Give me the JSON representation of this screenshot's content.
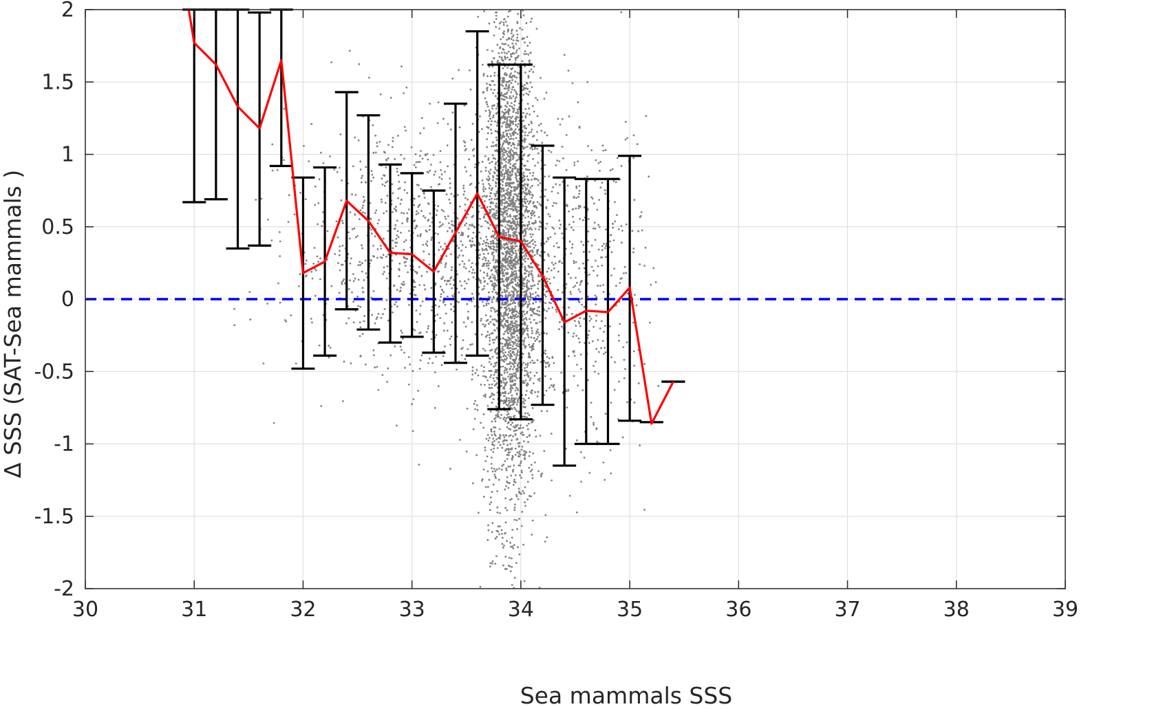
{
  "chart_data": {
    "type": "scatter",
    "title": "",
    "xlabel": "Sea mammals  SSS",
    "ylabel": "Δ SSS (SAT-Sea mammals )",
    "xlim": [
      30,
      39
    ],
    "ylim": [
      -2,
      2
    ],
    "xticks": [
      30,
      31,
      32,
      33,
      34,
      35,
      36,
      37,
      38,
      39
    ],
    "yticks": [
      -2,
      -1.5,
      -1,
      -0.5,
      0,
      0.5,
      1,
      1.5,
      2
    ],
    "xtick_labels": [
      "30",
      "31",
      "32",
      "33",
      "34",
      "35",
      "36",
      "37",
      "38",
      "39"
    ],
    "ytick_labels": [
      "-2",
      "-1.5",
      "-1",
      "-0.5",
      "0",
      "0.5",
      "1",
      "1.5",
      "2"
    ],
    "grid": true,
    "colors": {
      "scatter": "#808080",
      "mean_line": "#ff0000",
      "error_bars": "#000000",
      "zero_line": "#0000ff",
      "grid": "#e0e0e0",
      "axes": "#262626"
    },
    "scatter": {
      "name": "",
      "description_note": "dense cloud of individual points",
      "clusters": [
        {
          "x_center": 33.9,
          "x_spread": 0.12,
          "y_center": 0.3,
          "y_spread": 0.9,
          "count": 3200
        },
        {
          "x_center": 33.3,
          "x_spread": 0.7,
          "y_center": 0.35,
          "y_spread": 0.45,
          "count": 1300
        },
        {
          "x_center": 34.5,
          "x_spread": 0.35,
          "y_center": 0.0,
          "y_spread": 0.6,
          "count": 450
        }
      ]
    },
    "binned_mean": {
      "x": [
        30.95,
        31.0,
        31.2,
        31.4,
        31.6,
        31.8,
        32.0,
        32.2,
        32.4,
        32.6,
        32.8,
        33.0,
        33.2,
        33.4,
        33.6,
        33.8,
        34.0,
        34.2,
        34.4,
        34.6,
        34.8,
        35.0,
        35.2,
        35.4
      ],
      "y": [
        2.0,
        1.77,
        1.62,
        1.33,
        1.18,
        1.65,
        0.18,
        0.26,
        0.68,
        0.54,
        0.32,
        0.31,
        0.19,
        0.46,
        0.73,
        0.43,
        0.4,
        0.16,
        -0.16,
        -0.08,
        -0.09,
        0.08,
        -0.86,
        -0.57
      ]
    },
    "error_bars": [
      {
        "x": 31.0,
        "low": 0.67,
        "high": 2.0
      },
      {
        "x": 31.2,
        "low": 0.69,
        "high": 2.0
      },
      {
        "x": 31.4,
        "low": 0.35,
        "high": 2.0
      },
      {
        "x": 31.6,
        "low": 0.37,
        "high": 1.98
      },
      {
        "x": 31.8,
        "low": 0.92,
        "high": 2.0
      },
      {
        "x": 32.0,
        "low": -0.48,
        "high": 0.84
      },
      {
        "x": 32.2,
        "low": -0.39,
        "high": 0.91
      },
      {
        "x": 32.4,
        "low": -0.07,
        "high": 1.43
      },
      {
        "x": 32.6,
        "low": -0.21,
        "high": 1.27
      },
      {
        "x": 32.8,
        "low": -0.3,
        "high": 0.93
      },
      {
        "x": 33.0,
        "low": -0.26,
        "high": 0.87
      },
      {
        "x": 33.2,
        "low": -0.37,
        "high": 0.75
      },
      {
        "x": 33.4,
        "low": -0.44,
        "high": 1.35
      },
      {
        "x": 33.6,
        "low": -0.39,
        "high": 1.85
      },
      {
        "x": 33.8,
        "low": -0.76,
        "high": 1.62
      },
      {
        "x": 34.0,
        "low": -0.83,
        "high": 1.62
      },
      {
        "x": 34.2,
        "low": -0.73,
        "high": 1.06
      },
      {
        "x": 34.4,
        "low": -1.15,
        "high": 0.84
      },
      {
        "x": 34.6,
        "low": -1.0,
        "high": 0.83
      },
      {
        "x": 34.8,
        "low": -1.0,
        "high": 0.83
      },
      {
        "x": 35.0,
        "low": -0.84,
        "high": 0.99
      },
      {
        "x": 35.2,
        "low": -0.85,
        "high": -0.85
      },
      {
        "x": 35.4,
        "low": -0.57,
        "high": -0.57
      }
    ],
    "reference_line": {
      "y": 0,
      "style": "dashed"
    }
  }
}
